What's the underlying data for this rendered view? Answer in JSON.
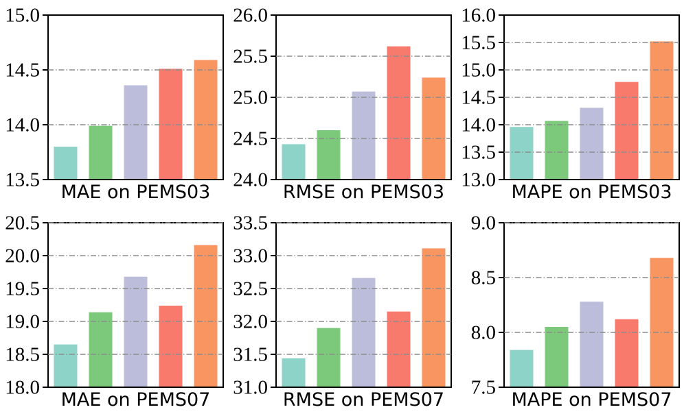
{
  "figure": {
    "background": "#ffffff",
    "axis_color": "#000000",
    "grid_color": "#8c8c8c",
    "grid_style": "dash-dot",
    "bar_colors": [
      "#8dd3c7",
      "#7cc97c",
      "#bcbddb",
      "#f87a6c",
      "#f99560"
    ]
  },
  "chart_data": [
    {
      "type": "bar",
      "xlabel": "MAE on PEMS03",
      "ylim": [
        13.5,
        15.0
      ],
      "yticks": [
        13.5,
        14.0,
        14.5,
        15.0
      ],
      "ytick_labels": [
        "13.5",
        "14.0",
        "14.5",
        "15.0"
      ],
      "gridlines": [
        14.0,
        14.5
      ],
      "values": [
        13.8,
        13.99,
        14.36,
        14.51,
        14.59
      ]
    },
    {
      "type": "bar",
      "xlabel": "RMSE on PEMS03",
      "ylim": [
        24.0,
        26.0
      ],
      "yticks": [
        24.0,
        24.5,
        25.0,
        25.5,
        26.0
      ],
      "ytick_labels": [
        "24.0",
        "24.5",
        "25.0",
        "25.5",
        "26.0"
      ],
      "gridlines": [
        24.5,
        25.0,
        25.5
      ],
      "values": [
        24.43,
        24.6,
        25.07,
        25.62,
        25.24
      ]
    },
    {
      "type": "bar",
      "xlabel": "MAPE on PEMS03",
      "ylim": [
        13.0,
        16.0
      ],
      "yticks": [
        13.0,
        13.5,
        14.0,
        14.5,
        15.0,
        15.5,
        16.0
      ],
      "ytick_labels": [
        "13.0",
        "13.5",
        "14.0",
        "14.5",
        "15.0",
        "15.5",
        "16.0"
      ],
      "gridlines": [
        13.5,
        14.0,
        14.5,
        15.0,
        15.5
      ],
      "values": [
        13.96,
        14.07,
        14.31,
        14.78,
        15.52
      ]
    },
    {
      "type": "bar",
      "xlabel": "MAE on PEMS07",
      "ylim": [
        18.0,
        20.5
      ],
      "yticks": [
        18.0,
        18.5,
        19.0,
        19.5,
        20.0,
        20.5
      ],
      "ytick_labels": [
        "18.0",
        "18.5",
        "19.0",
        "19.5",
        "20.0",
        "20.5"
      ],
      "gridlines": [
        18.5,
        19.0,
        19.5,
        20.0,
        20.5
      ],
      "values": [
        18.65,
        19.14,
        19.68,
        19.24,
        20.16
      ]
    },
    {
      "type": "bar",
      "xlabel": "RMSE on PEMS07",
      "ylim": [
        31.0,
        33.5
      ],
      "yticks": [
        31.0,
        31.5,
        32.0,
        32.5,
        33.0,
        33.5
      ],
      "ytick_labels": [
        "31.0",
        "31.5",
        "32.0",
        "32.5",
        "33.0",
        "33.5"
      ],
      "gridlines": [
        31.5,
        32.0,
        32.5,
        33.0,
        33.5
      ],
      "values": [
        31.44,
        31.9,
        32.66,
        32.15,
        33.11
      ]
    },
    {
      "type": "bar",
      "xlabel": "MAPE on PEMS07",
      "ylim": [
        7.5,
        9.0
      ],
      "yticks": [
        7.5,
        8.0,
        8.5,
        9.0
      ],
      "ytick_labels": [
        "7.5",
        "8.0",
        "8.5",
        "9.0"
      ],
      "gridlines": [
        8.0,
        8.5,
        9.0
      ],
      "values": [
        7.84,
        8.05,
        8.28,
        8.12,
        8.68
      ]
    }
  ]
}
